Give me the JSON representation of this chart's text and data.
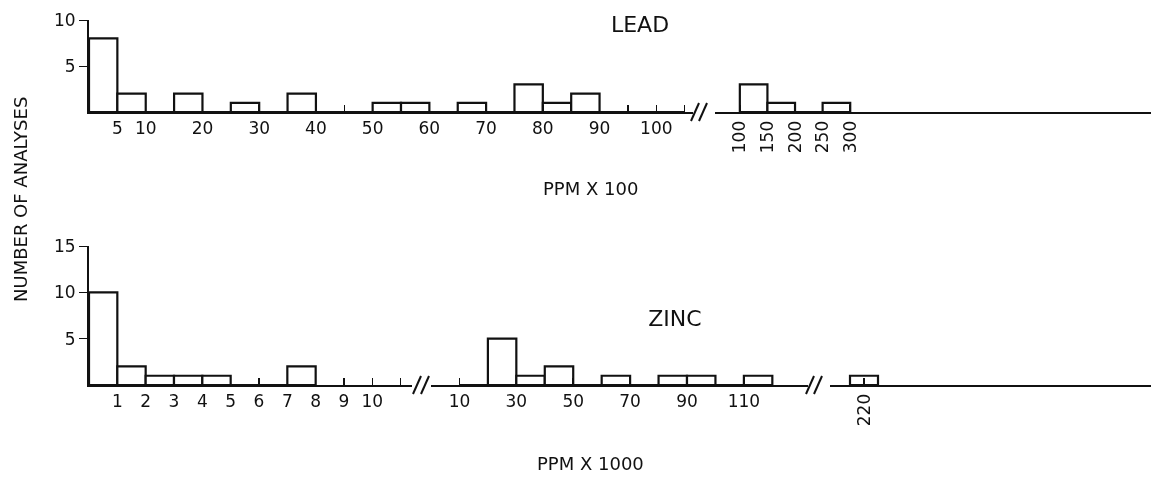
{
  "chart_data": [
    {
      "type": "histogram",
      "title": "LEAD",
      "xlabel": "PPM X 100",
      "ylabel": "NUMBER OF ANALYSES",
      "bins": [
        0,
        5,
        10,
        15,
        20,
        25,
        30,
        35,
        40,
        45,
        50,
        55,
        60,
        65,
        70,
        75,
        80,
        85,
        90,
        95,
        100,
        105
      ],
      "values": [
        8,
        2,
        0,
        2,
        0,
        1,
        0,
        2,
        0,
        0,
        1,
        1,
        0,
        1,
        0,
        3,
        1,
        2,
        0,
        0,
        0
      ],
      "xlim": [
        0,
        107
      ],
      "xticks": [
        5,
        10,
        20,
        30,
        40,
        {
          "value": 45,
          "label": null
        },
        50,
        60,
        70,
        80,
        90,
        {
          "value": 95,
          "label": null
        },
        100,
        {
          "value": 105,
          "label": null
        }
      ],
      "ylim": [
        0,
        10
      ],
      "yticks": [
        5,
        10
      ]
    },
    {
      "type": "histogram",
      "bins": [
        100,
        150,
        200,
        250,
        300
      ],
      "values": [
        3,
        1,
        0,
        1
      ],
      "xlim": [
        55,
        845
      ],
      "xticks": [
        100,
        150,
        200,
        250,
        300
      ],
      "ylim": [
        0,
        10
      ],
      "tick_labels": "x"
    },
    {
      "type": "histogram",
      "bins": [
        0,
        1,
        2,
        3,
        4,
        5,
        6,
        7,
        8
      ],
      "values": [
        10,
        2,
        1,
        1,
        1,
        0,
        0,
        2
      ],
      "xlim": [
        0,
        11.4
      ],
      "xticks": [
        1,
        2,
        3,
        4,
        5,
        6,
        7,
        8,
        9,
        10,
        {
          "value": 11,
          "label": null
        }
      ],
      "ylim": [
        0,
        15
      ],
      "yticks": [
        5,
        10,
        15
      ]
    },
    {
      "type": "histogram",
      "title": "ZINC",
      "xlabel": "PPM X 1000",
      "bins": [
        10,
        20,
        30,
        40,
        50,
        60,
        70,
        80,
        90,
        100,
        110,
        120
      ],
      "values": [
        0,
        5,
        1,
        2,
        0,
        1,
        0,
        1,
        1,
        0,
        1
      ],
      "xlim": [
        0,
        135
      ],
      "xticks": [
        10,
        30,
        50,
        70,
        90,
        110
      ],
      "ylim": [
        0,
        15
      ],
      "tick_labels": "x"
    },
    {
      "type": "bar",
      "categories": [
        "220"
      ],
      "values": [
        1
      ],
      "ylim": [
        0,
        15
      ],
      "tick_labels": "x"
    }
  ]
}
